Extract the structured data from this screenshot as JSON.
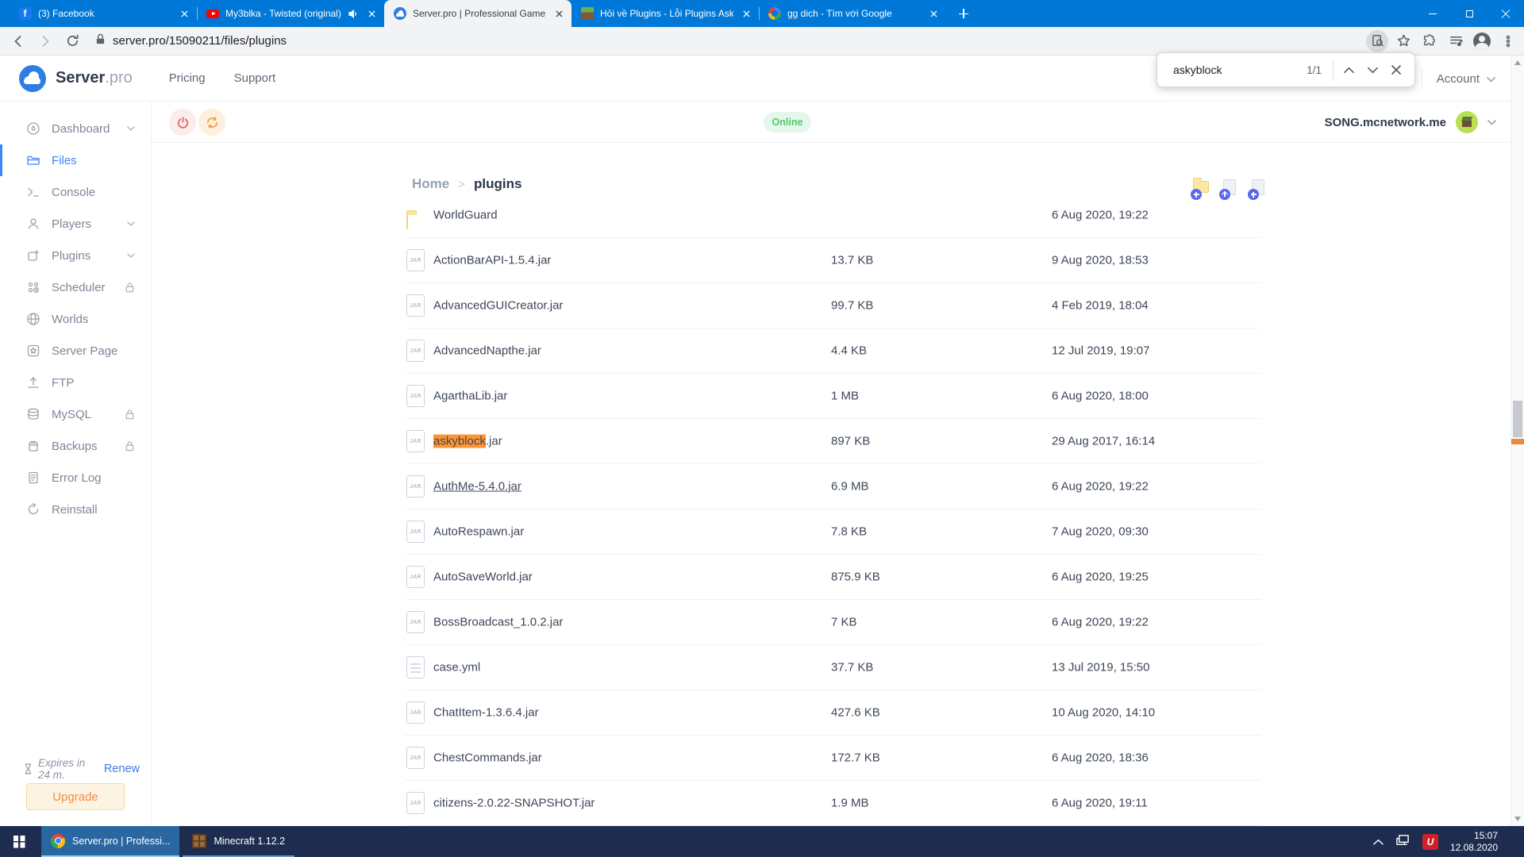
{
  "browser": {
    "tabs": [
      {
        "icon": "facebook",
        "title": "(3) Facebook"
      },
      {
        "icon": "youtube",
        "title": "My3blka - Twisted (original) |",
        "audio": true
      },
      {
        "icon": "serverpro",
        "title": "Server.pro | Professional Game Se",
        "active": true
      },
      {
        "icon": "minecraft",
        "title": "Hỏi về Plugins - Lỗi Plugins Asky"
      },
      {
        "icon": "google",
        "title": "gg dich - Tìm với Google"
      }
    ],
    "url": "server.pro/15090211/files/plugins",
    "find": {
      "query": "askyblock",
      "matches": "1/1"
    }
  },
  "site": {
    "brand": {
      "bold": "Server",
      "light": ".pro"
    },
    "nav": [
      "Pricing",
      "Support"
    ],
    "account": "Account",
    "status": "Online",
    "server_name": "SONG.mcnetwork.me",
    "breadcrumb": {
      "root": "Home",
      "separator": ">",
      "current": "plugins"
    },
    "sidebar": [
      {
        "icon": "dashboard",
        "label": "Dashboard",
        "chevron": true
      },
      {
        "icon": "files",
        "label": "Files",
        "active": true
      },
      {
        "icon": "console",
        "label": "Console"
      },
      {
        "icon": "players",
        "label": "Players",
        "chevron": true
      },
      {
        "icon": "plugins",
        "label": "Plugins",
        "chevron": true
      },
      {
        "icon": "scheduler",
        "label": "Scheduler",
        "lock": true
      },
      {
        "icon": "worlds",
        "label": "Worlds"
      },
      {
        "icon": "serverpage",
        "label": "Server Page"
      },
      {
        "icon": "ftp",
        "label": "FTP"
      },
      {
        "icon": "mysql",
        "label": "MySQL",
        "lock": true
      },
      {
        "icon": "backups",
        "label": "Backups",
        "lock": true
      },
      {
        "icon": "errorlog",
        "label": "Error Log"
      },
      {
        "icon": "reinstall",
        "label": "Reinstall"
      }
    ],
    "expiry": {
      "text": "Expires in 24 m.",
      "renew": "Renew",
      "upgrade": "Upgrade"
    },
    "jar_badge": "JAR",
    "files": [
      {
        "type": "folder",
        "name": "WorldGuard",
        "size": "",
        "date": "6 Aug 2020, 19:22"
      },
      {
        "type": "jar",
        "name": "ActionBarAPI-1.5.4.jar",
        "size": "13.7 KB",
        "date": "9 Aug 2020, 18:53"
      },
      {
        "type": "jar",
        "name": "AdvancedGUICreator.jar",
        "size": "99.7 KB",
        "date": "4 Feb 2019, 18:04"
      },
      {
        "type": "jar",
        "name": "AdvancedNapthe.jar",
        "size": "4.4 KB",
        "date": "12 Jul 2019, 19:07"
      },
      {
        "type": "jar",
        "name": "AgarthaLib.jar",
        "size": "1 MB",
        "date": "6 Aug 2020, 18:00"
      },
      {
        "type": "jar",
        "name": "askyblock.jar",
        "highlight": "askyblock",
        "size": "897 KB",
        "date": "29 Aug 2017, 16:14"
      },
      {
        "type": "jar",
        "name": "AuthMe-5.4.0.jar",
        "underline": true,
        "size": "6.9 MB",
        "date": "6 Aug 2020, 19:22"
      },
      {
        "type": "jar",
        "name": "AutoRespawn.jar",
        "size": "7.8 KB",
        "date": "7 Aug 2020, 09:30"
      },
      {
        "type": "jar",
        "name": "AutoSaveWorld.jar",
        "size": "875.9 KB",
        "date": "6 Aug 2020, 19:25"
      },
      {
        "type": "jar",
        "name": "BossBroadcast_1.0.2.jar",
        "size": "7 KB",
        "date": "6 Aug 2020, 19:22"
      },
      {
        "type": "yml",
        "name": "case.yml",
        "size": "37.7 KB",
        "date": "13 Jul 2019, 15:50"
      },
      {
        "type": "jar",
        "name": "ChatItem-1.3.6.4.jar",
        "size": "427.6 KB",
        "date": "10 Aug 2020, 14:10"
      },
      {
        "type": "jar",
        "name": "ChestCommands.jar",
        "size": "172.7 KB",
        "date": "6 Aug 2020, 18:36"
      },
      {
        "type": "jar",
        "name": "citizens-2.0.22-SNAPSHOT.jar",
        "size": "1.9 MB",
        "date": "6 Aug 2020, 19:11"
      }
    ]
  },
  "taskbar": {
    "apps": [
      {
        "icon": "chrome",
        "label": "Server.pro | Professi...",
        "active": true
      },
      {
        "icon": "crafting",
        "label": "Minecraft 1.12.2"
      }
    ],
    "unikey_label": "U",
    "time": "15:07",
    "date": "12.08.2020"
  },
  "colors": {
    "titlebar_blue": "#0078d7",
    "accent_blue": "#3f83f8",
    "find_highlight_orange": "#ff9632",
    "online_green": "#54c96e",
    "upgrade_orange": "#ee8f41",
    "taskbar_navy": "#1e2c4f"
  }
}
